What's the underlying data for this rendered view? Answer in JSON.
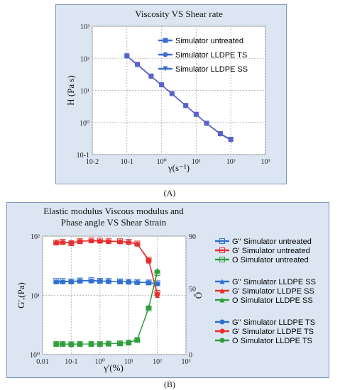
{
  "chart_data": [
    {
      "id": "A",
      "type": "line",
      "title": "Viscosity VS Shear rate",
      "xlabel": "γ(s⁻¹)",
      "ylabel": "Η (Pa s)",
      "xscale": "log",
      "yscale": "log",
      "xlim": [
        0.01,
        1000
      ],
      "ylim": [
        0.1,
        1000
      ],
      "xticks": [
        "10-2",
        "10-1",
        "10⁰",
        "10¹",
        "10²",
        "10³"
      ],
      "yticks": [
        "10-1",
        "10⁰",
        "10¹",
        "10²",
        "10³"
      ],
      "grid": true,
      "legend_position": "top-right",
      "x": [
        0.1,
        0.2,
        0.5,
        1,
        2,
        5,
        10,
        20,
        50,
        100
      ],
      "series": [
        {
          "name": "Simulator untreated",
          "marker": "square",
          "color": "#3c6fd0",
          "values": [
            120,
            65,
            28,
            15,
            8,
            3.4,
            1.8,
            0.95,
            0.45,
            0.3
          ]
        },
        {
          "name": "Simulator LLDPE TS",
          "marker": "circle",
          "color": "#3c6fd0",
          "values": [
            118,
            64,
            27.5,
            14.8,
            7.9,
            3.35,
            1.78,
            0.94,
            0.44,
            0.29
          ]
        },
        {
          "name": "Simulator LLDPE SS",
          "marker": "triangle-down",
          "color": "#6a5acd",
          "values": [
            115,
            62,
            27,
            14.5,
            7.7,
            3.3,
            1.75,
            0.92,
            0.43,
            0.28
          ]
        }
      ]
    },
    {
      "id": "B",
      "type": "line",
      "title": [
        "Elastic modulus Viscous modulus and",
        "Phase angle VS Shear Strain"
      ],
      "xlabel": "γ'(%)",
      "ylabel": "G',(Pa)",
      "y2label": "Ô",
      "xscale": "log",
      "yscale": "log",
      "xlim": [
        0.01,
        1000
      ],
      "ylim": [
        1,
        100
      ],
      "y2lim": [
        0,
        90
      ],
      "xticks": [
        "0.01",
        "10-1",
        "10⁰",
        "10¹",
        "10²",
        "10³"
      ],
      "yticks": [
        "10⁰",
        "10¹",
        "10²"
      ],
      "y2ticks": [
        "0",
        "50",
        "90"
      ],
      "grid": true,
      "legend_position": "right",
      "x": [
        0.03,
        0.05,
        0.1,
        0.2,
        0.5,
        1,
        2,
        5,
        10,
        20,
        50,
        100
      ],
      "series": [
        {
          "name": "G'' Simulator untreated",
          "color": "#2f6fd0",
          "marker": "square-open",
          "axis": "y",
          "values": [
            17.5,
            17.5,
            17.2,
            17.8,
            18,
            17.6,
            17.5,
            17.2,
            17,
            16.8,
            16.5,
            16
          ]
        },
        {
          "name": "G' Simulator untreated",
          "color": "#e53030",
          "marker": "square-open",
          "axis": "y",
          "values": [
            78,
            80,
            76,
            82,
            85,
            84,
            83,
            82,
            80,
            75,
            40,
            11
          ]
        },
        {
          "name": "O Simulator untreated",
          "color": "#2e9e3e",
          "marker": "square-open",
          "axis": "y2",
          "values": [
            8,
            8,
            7.8,
            8,
            8,
            8,
            8.3,
            8.5,
            9,
            11,
            35,
            62
          ]
        },
        {
          "name": "G'' Simulator LLDPE SS",
          "color": "#2f6fd0",
          "marker": "triangle",
          "axis": "y",
          "values": [
            17,
            17,
            17,
            17.5,
            17.6,
            17.4,
            17.2,
            17,
            16.9,
            16.6,
            16.4,
            15.8
          ]
        },
        {
          "name": "G' Simulator LLDPE SS",
          "color": "#e53030",
          "marker": "triangle",
          "axis": "y",
          "values": [
            80,
            79,
            78,
            83,
            84,
            83,
            82,
            81,
            79,
            74,
            38,
            10
          ]
        },
        {
          "name": "O Simulator LLDPE SS",
          "color": "#2e9e3e",
          "marker": "triangle",
          "axis": "y2",
          "values": [
            8,
            8,
            8,
            8,
            8,
            8.1,
            8.3,
            8.6,
            9.2,
            11.5,
            36,
            64
          ]
        },
        {
          "name": "G'' Simulator LLDPE TS",
          "color": "#2f6fd0",
          "marker": "circle",
          "axis": "y",
          "values": [
            16.8,
            16.8,
            17,
            17.4,
            17.5,
            17.3,
            17.1,
            17,
            16.8,
            16.5,
            16.3,
            15.6
          ]
        },
        {
          "name": "G' Simulator LLDPE TS",
          "color": "#e53030",
          "marker": "circle",
          "axis": "y",
          "values": [
            77,
            78,
            77,
            81,
            83,
            82,
            81,
            80,
            78,
            73,
            39,
            10.5
          ]
        },
        {
          "name": "O Simulator LLDPE TS",
          "color": "#2e9e3e",
          "marker": "circle",
          "axis": "y2",
          "values": [
            8,
            8,
            7.9,
            8,
            8.1,
            8.1,
            8.2,
            8.5,
            9.1,
            11.2,
            35.5,
            63
          ]
        }
      ]
    }
  ],
  "captions": {
    "a": "(A)",
    "b": "(B)"
  }
}
